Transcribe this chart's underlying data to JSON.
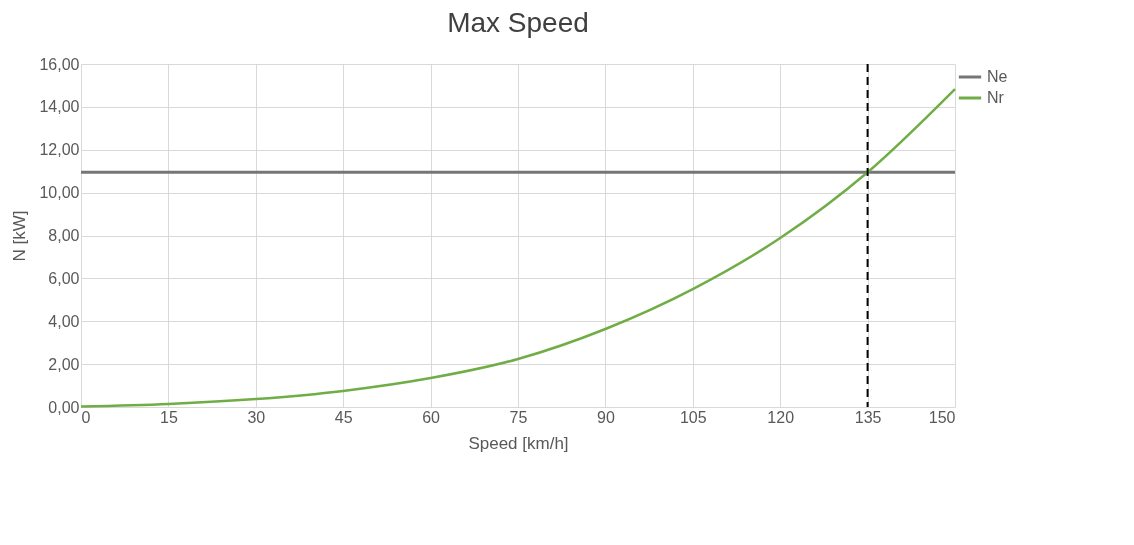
{
  "chart_data": {
    "type": "line",
    "title": "Max Speed",
    "xlabel": "Speed [km/h]",
    "ylabel": "N [kW]",
    "xlim": [
      0,
      150
    ],
    "xticks": [
      0,
      15,
      30,
      45,
      60,
      75,
      90,
      105,
      120,
      135,
      150
    ],
    "ylim": [
      0,
      16
    ],
    "yticks": [
      {
        "value": 0,
        "label": "0,00"
      },
      {
        "value": 2,
        "label": "2,00"
      },
      {
        "value": 4,
        "label": "4,00"
      },
      {
        "value": 6,
        "label": "6,00"
      },
      {
        "value": 8,
        "label": "8,00"
      },
      {
        "value": 10,
        "label": "10,00"
      },
      {
        "value": 12,
        "label": "12,00"
      },
      {
        "value": 14,
        "label": "14,00"
      },
      {
        "value": 16,
        "label": "16,00"
      }
    ],
    "grid": true,
    "legend": "top right",
    "series": [
      {
        "name": "Ne",
        "color": "#767676",
        "x": [
          0,
          150
        ],
        "values": [
          10.95,
          10.95
        ]
      },
      {
        "name": "Nr",
        "color": "#70ad47",
        "x": [
          0,
          15,
          30,
          45,
          60,
          75,
          90,
          105,
          120,
          135,
          150
        ],
        "values": [
          0.02,
          0.14,
          0.37,
          0.75,
          1.35,
          2.24,
          3.64,
          5.5,
          7.88,
          10.95,
          14.83
        ]
      }
    ],
    "ref_lines": [
      {
        "axis": "x",
        "value": 135,
        "color": "#000000",
        "line_style": "dashed"
      }
    ]
  }
}
